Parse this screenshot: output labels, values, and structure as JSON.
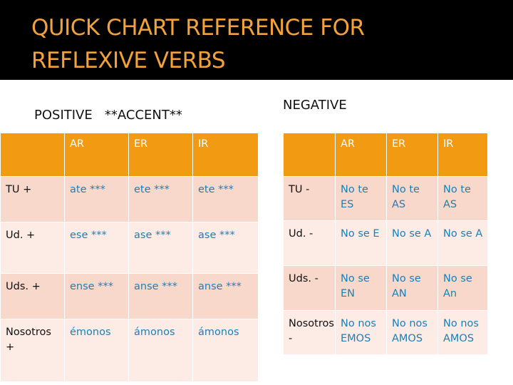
{
  "title_line1": "QUICK CHART REFERENCE FOR",
  "title_line2": "REFLEXIVE VERBS",
  "positive_label": "POSITIVE   **ACCENT**",
  "negative_label": "NEGATIVE",
  "positive": {
    "headers": [
      "",
      "AR",
      "ER",
      "IR"
    ],
    "rows": [
      {
        "label": "TU +",
        "ar": "ate ***",
        "er": "ete ***",
        "ir": "ete ***"
      },
      {
        "label": "Ud. +",
        "ar": "ese ***",
        "er": "ase ***",
        "ir": "ase ***"
      },
      {
        "label": "Uds. +",
        "ar": "ense ***",
        "er": "anse ***",
        "ir": "anse ***"
      },
      {
        "label": "Nosotros +",
        "ar": "émonos",
        "er": "ámonos",
        "ir": "ámonos"
      }
    ]
  },
  "negative": {
    "headers": [
      "",
      "AR",
      "ER",
      "IR"
    ],
    "rows": [
      {
        "label": "TU -",
        "ar": "No te ES",
        "er": "No te AS",
        "ir": "No te AS"
      },
      {
        "label": "Ud. -",
        "ar": "No se E",
        "er": "No se A",
        "ir": "No se A"
      },
      {
        "label": "Uds. -",
        "ar": "No se EN",
        "er": "No se AN",
        "ir": "No se An"
      },
      {
        "label": "Nosotros -",
        "ar": "No nos EMOS",
        "er": "No nos AMOS",
        "ir": "No nos AMOS"
      }
    ]
  },
  "colors": {
    "title": "#f3a23a",
    "header_bg": "#f29a12",
    "row_dark": "#f9d8cc",
    "row_light": "#fdebe6",
    "value_text": "#1c7fb6"
  }
}
